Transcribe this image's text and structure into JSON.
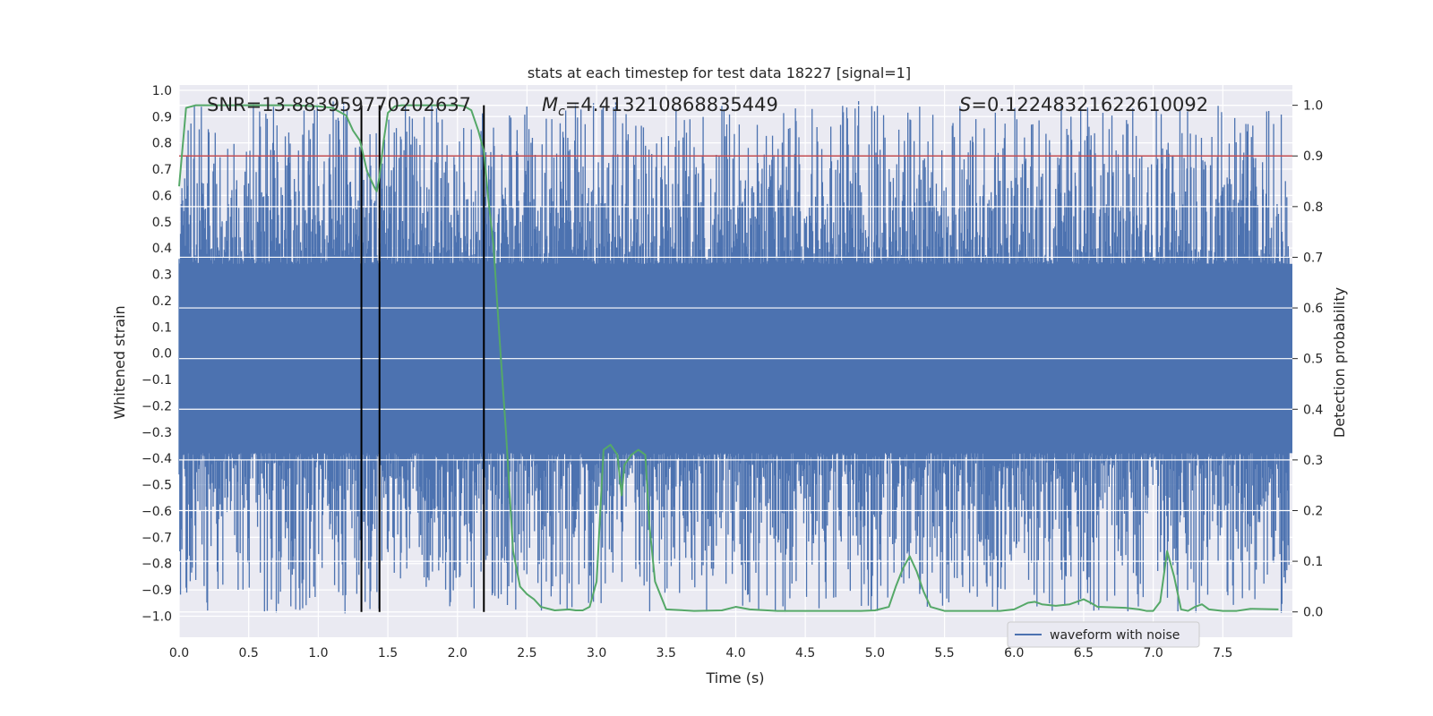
{
  "chart_data": {
    "type": "line",
    "title": "stats at each timestep for test data 18227 [signal=1]",
    "xlabel": "Time (s)",
    "ylabel_left": "Whitened strain",
    "ylabel_right": "Detection probability",
    "xlim": [
      0.0,
      8.0
    ],
    "ylim_left": [
      -1.08,
      1.02
    ],
    "ylim_right": [
      -0.05,
      1.04
    ],
    "x_ticks": [
      "0.0",
      "0.5",
      "1.0",
      "1.5",
      "2.0",
      "2.5",
      "3.0",
      "3.5",
      "4.0",
      "4.5",
      "5.0",
      "5.5",
      "6.0",
      "6.5",
      "7.0",
      "7.5"
    ],
    "y_ticks_left": [
      "1.0",
      "0.9",
      "0.8",
      "0.7",
      "0.6",
      "0.5",
      "0.4",
      "0.3",
      "0.2",
      "0.1",
      "0.0",
      "−0.1",
      "−0.2",
      "−0.3",
      "−0.4",
      "−0.5",
      "−0.6",
      "−0.7",
      "−0.8",
      "−0.9",
      "−1.0"
    ],
    "y_ticks_right": [
      "1.0",
      "0.9",
      "0.8",
      "0.7",
      "0.6",
      "0.5",
      "0.4",
      "0.3",
      "0.2",
      "0.1",
      "0.0"
    ],
    "annotations": {
      "snr": "SNR=13.883959770202637",
      "mc_symbol": "M",
      "mc_sub": "c",
      "mc_value": "=4.413210868835449",
      "s_symbol": "S",
      "s_value": "=0.12248321622610092"
    },
    "threshold": {
      "value": 0.9,
      "axis": "right",
      "color": "#c44e52"
    },
    "vertical_lines": [
      1.31,
      1.44,
      2.19
    ],
    "legend": {
      "label": "waveform with noise",
      "position": "lower-right"
    },
    "colors": {
      "waveform": "#4c72b0",
      "probability": "#55a868",
      "background": "#eaeaf2",
      "grid": "#ffffff",
      "vline": "#000000"
    },
    "waveform": {
      "band_low": -0.38,
      "band_high": 0.34,
      "peak_max": 0.96,
      "trough_min": -0.99,
      "samples": 1600,
      "note": "whitened noisy strain, rendered as dense vertical spikes"
    },
    "series": [
      {
        "name": "detection probability",
        "axis": "right",
        "x": [
          0.0,
          0.05,
          0.12,
          0.2,
          0.4,
          0.6,
          0.8,
          1.0,
          1.1,
          1.2,
          1.25,
          1.3,
          1.35,
          1.4,
          1.42,
          1.44,
          1.47,
          1.5,
          1.55,
          1.6,
          1.7,
          1.9,
          2.0,
          2.05,
          2.1,
          2.15,
          2.19,
          2.22,
          2.26,
          2.3,
          2.35,
          2.4,
          2.45,
          2.5,
          2.55,
          2.6,
          2.7,
          2.8,
          2.85,
          2.9,
          2.95,
          3.0,
          3.05,
          3.1,
          3.15,
          3.18,
          3.2,
          3.25,
          3.3,
          3.35,
          3.38,
          3.42,
          3.5,
          3.7,
          3.9,
          4.0,
          4.1,
          4.3,
          4.5,
          4.7,
          4.9,
          5.0,
          5.1,
          5.15,
          5.2,
          5.25,
          5.3,
          5.35,
          5.4,
          5.5,
          5.7,
          5.9,
          6.0,
          6.1,
          6.15,
          6.2,
          6.3,
          6.4,
          6.45,
          6.5,
          6.55,
          6.6,
          6.8,
          6.9,
          6.95,
          7.0,
          7.05,
          7.1,
          7.15,
          7.2,
          7.25,
          7.3,
          7.35,
          7.4,
          7.5,
          7.6,
          7.7,
          7.9
        ],
        "y": [
          0.84,
          0.995,
          1.0,
          1.0,
          1.0,
          1.0,
          1.0,
          0.998,
          0.995,
          0.98,
          0.95,
          0.93,
          0.87,
          0.84,
          0.83,
          0.86,
          0.93,
          0.985,
          0.998,
          1.0,
          1.0,
          1.0,
          1.0,
          0.998,
          0.99,
          0.95,
          0.91,
          0.82,
          0.72,
          0.55,
          0.35,
          0.12,
          0.05,
          0.035,
          0.025,
          0.01,
          0.003,
          0.005,
          0.003,
          0.003,
          0.01,
          0.06,
          0.32,
          0.33,
          0.31,
          0.23,
          0.29,
          0.31,
          0.32,
          0.31,
          0.17,
          0.06,
          0.005,
          0.002,
          0.003,
          0.01,
          0.005,
          0.002,
          0.002,
          0.002,
          0.002,
          0.003,
          0.01,
          0.05,
          0.085,
          0.11,
          0.08,
          0.04,
          0.01,
          0.002,
          0.002,
          0.002,
          0.005,
          0.018,
          0.02,
          0.015,
          0.012,
          0.015,
          0.02,
          0.025,
          0.018,
          0.01,
          0.008,
          0.005,
          0.002,
          0.002,
          0.02,
          0.12,
          0.07,
          0.005,
          0.002,
          0.01,
          0.015,
          0.005,
          0.002,
          0.002,
          0.006,
          0.005
        ]
      }
    ]
  }
}
